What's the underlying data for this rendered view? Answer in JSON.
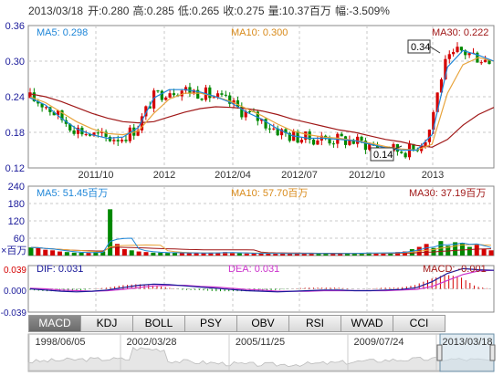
{
  "header": {
    "date": "2013/03/18",
    "open_label": "开:",
    "open": "0.280",
    "high_label": "高:",
    "high": "0.285",
    "low_label": "低:",
    "low": "0.265",
    "close_label": "收:",
    "close": "0.275",
    "volume_label": "量:",
    "volume": "10.37百万",
    "change_label": "幅:",
    "change": "-3.509%"
  },
  "price_panel": {
    "ma5": "MA5: 0.298",
    "ma10": "MA10: 0.300",
    "ma30": "MA30: 0.222",
    "peak_label": "0.34",
    "trough_label": "0.14"
  },
  "volume_panel": {
    "ma5": "MA5: 51.45百万",
    "ma10": "MA10: 57.70百万",
    "ma30": "MA30: 37.19百万",
    "scale_note": "×百万"
  },
  "macd_panel": {
    "dif": "DIF: 0.031",
    "dea": "DEA: 0.031",
    "macd": "MACD: -0.001",
    "y_top": "0.039",
    "y_mid": "0.000",
    "y_bottom": "-0.039"
  },
  "indicator_tabs": [
    "MACD",
    "KDJ",
    "BOLL",
    "PSY",
    "OBV",
    "RSI",
    "WVAD",
    "CCI"
  ],
  "navigator": {
    "dates": [
      "1998/06/05",
      "2002/03/28",
      "2005/11/25",
      "2009/07/24",
      "2013/03/18"
    ]
  },
  "colors": {
    "up": "#d40000",
    "down": "#008800",
    "ma5": "#1e86d8",
    "ma10": "#e8a43c",
    "ma30": "#a01818",
    "dif": "#1a1a9a",
    "dea": "#cc33cc",
    "grid": "#c9c9c9"
  },
  "chart_data": [
    {
      "type": "candlestick",
      "title": "",
      "ylim": [
        0.12,
        0.36
      ],
      "yticks": [
        "0.36",
        "0.30",
        "0.24",
        "0.18",
        "0.12"
      ],
      "xticks": [
        "2011/10",
        "2012",
        "2012/04",
        "2012/07",
        "2012/10",
        "2013"
      ],
      "series": [
        {
          "name": "MA5",
          "values": [
            0.238,
            0.226,
            0.204,
            0.186,
            0.176,
            0.17,
            0.172,
            0.188,
            0.238,
            0.252,
            0.252,
            0.248,
            0.24,
            0.23,
            0.214,
            0.202,
            0.186,
            0.174,
            0.17,
            0.17,
            0.168,
            0.166,
            0.16,
            0.154,
            0.15,
            0.15,
            0.176,
            0.29,
            0.318,
            0.31,
            0.3
          ]
        },
        {
          "name": "MA10",
          "values": [
            0.24,
            0.23,
            0.214,
            0.198,
            0.186,
            0.178,
            0.176,
            0.182,
            0.212,
            0.236,
            0.246,
            0.246,
            0.24,
            0.232,
            0.22,
            0.208,
            0.194,
            0.182,
            0.176,
            0.172,
            0.17,
            0.166,
            0.162,
            0.156,
            0.152,
            0.15,
            0.16,
            0.246,
            0.294,
            0.306,
            0.3
          ]
        },
        {
          "name": "MA30",
          "values": [
            0.245,
            0.24,
            0.232,
            0.222,
            0.212,
            0.204,
            0.198,
            0.196,
            0.198,
            0.206,
            0.214,
            0.22,
            0.223,
            0.222,
            0.22,
            0.216,
            0.21,
            0.202,
            0.196,
            0.19,
            0.184,
            0.18,
            0.174,
            0.168,
            0.164,
            0.158,
            0.155,
            0.168,
            0.192,
            0.21,
            0.222
          ]
        }
      ]
    },
    {
      "type": "bar",
      "title": "",
      "ylim": [
        0,
        240
      ],
      "yticks": [
        "240",
        "180",
        "120",
        "60",
        "×百万"
      ],
      "values": [
        28,
        26,
        20,
        18,
        14,
        12,
        10,
        10,
        9,
        12,
        14,
        160,
        40,
        22,
        18,
        14,
        12,
        10,
        10,
        9,
        10,
        9,
        8,
        9,
        8,
        10,
        9,
        12,
        9,
        8,
        7,
        8,
        7,
        8,
        6,
        7,
        6,
        7,
        8,
        7,
        6,
        7,
        6,
        8,
        7,
        8,
        9,
        10,
        8,
        9,
        10,
        12,
        14,
        22,
        30,
        40,
        26,
        50,
        34,
        46,
        44,
        30,
        40,
        22,
        18
      ]
    },
    {
      "type": "bar",
      "title": "",
      "ylim": [
        -0.039,
        0.039
      ],
      "yticks": [
        "0.039",
        "0.000",
        "-0.039"
      ],
      "series": [
        {
          "name": "DIF",
          "values": [
            0.0,
            -0.002,
            -0.004,
            -0.005,
            -0.004,
            -0.002,
            0.002,
            0.006,
            0.008,
            0.007,
            0.005,
            0.003,
            0.001,
            -0.001,
            -0.003,
            -0.004,
            -0.005,
            -0.004,
            -0.003,
            -0.002,
            -0.002,
            -0.003,
            -0.003,
            -0.002,
            -0.001,
            0.002,
            0.012,
            0.026,
            0.034,
            0.032,
            0.031
          ]
        },
        {
          "name": "DEA",
          "values": [
            0.001,
            0.0,
            -0.002,
            -0.003,
            -0.004,
            -0.003,
            -0.001,
            0.002,
            0.005,
            0.006,
            0.006,
            0.004,
            0.003,
            0.001,
            -0.001,
            -0.002,
            -0.004,
            -0.004,
            -0.004,
            -0.003,
            -0.003,
            -0.003,
            -0.003,
            -0.003,
            -0.002,
            -0.001,
            0.004,
            0.014,
            0.024,
            0.03,
            0.031
          ]
        }
      ]
    }
  ]
}
